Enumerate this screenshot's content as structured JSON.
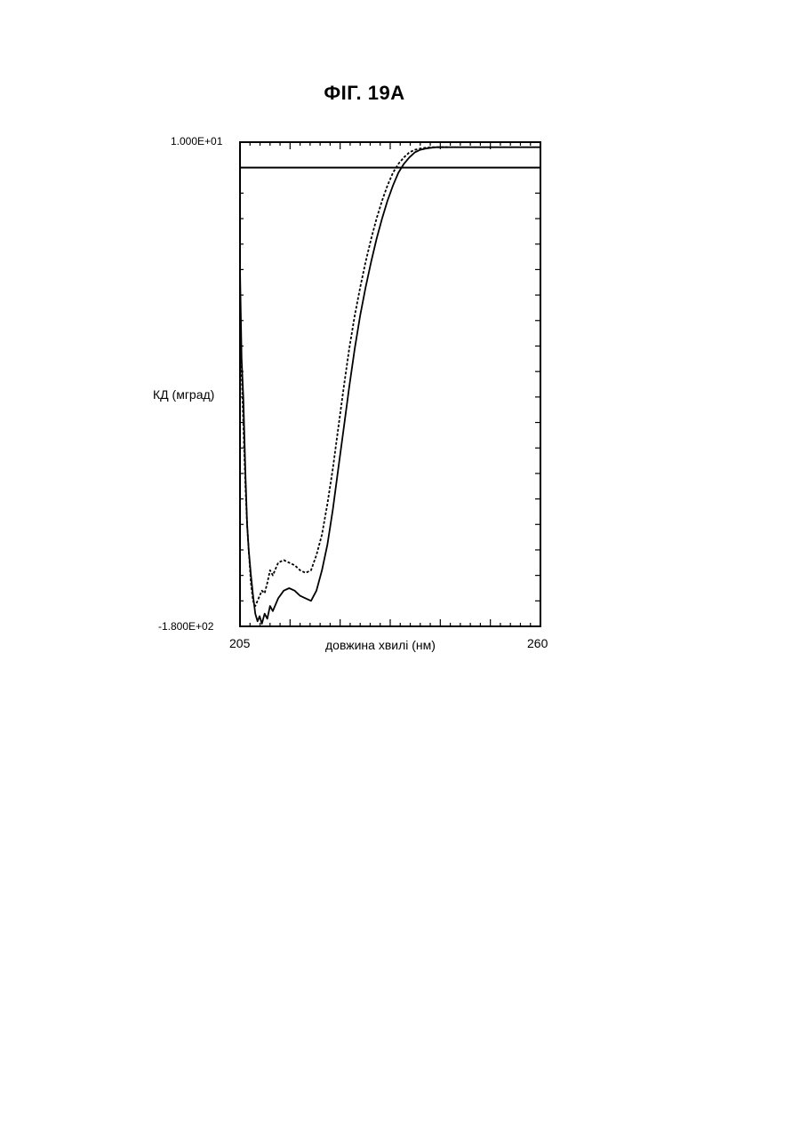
{
  "figure": {
    "title": "ФІГ. 19А"
  },
  "chart_data": {
    "type": "line",
    "title": "ФІГ. 19А",
    "xlabel": "довжина хвилі (нм)",
    "ylabel": "КД (мград)",
    "x_tick_labels": [
      "205",
      "260"
    ],
    "y_tick_labels": [
      "1.000E+01",
      "-1.800E+02"
    ],
    "xlim": [
      205,
      260
    ],
    "ylim": [
      -180,
      10
    ],
    "grid": false,
    "legend": "none",
    "reference_line": {
      "y": 0
    },
    "series": [
      {
        "style": "solid",
        "color": "#000000",
        "x": [
          205,
          205.3,
          205.6,
          206,
          206.3,
          206.6,
          207,
          207.4,
          207.8,
          208.2,
          208.6,
          209.0,
          209.5,
          210,
          210.5,
          211,
          212,
          213,
          214,
          215,
          216,
          217,
          218,
          219,
          220,
          221,
          222,
          223,
          224,
          225,
          226,
          227,
          228,
          229,
          230,
          231,
          232,
          233,
          234,
          235,
          236,
          237,
          238,
          239,
          240,
          241,
          242,
          243,
          244,
          245,
          246,
          247,
          248,
          249,
          250,
          251,
          252,
          254,
          256,
          258,
          260
        ],
        "y": [
          -40,
          -75,
          -90,
          -120,
          -140,
          -150,
          -160,
          -168,
          -175,
          -178,
          -176,
          -179,
          -175,
          -177,
          -172,
          -174,
          -169,
          -166,
          -165,
          -166,
          -168,
          -169,
          -170,
          -166,
          -158,
          -148,
          -134,
          -118,
          -102,
          -86,
          -71,
          -58,
          -47,
          -37,
          -28,
          -20,
          -13,
          -7,
          -2,
          1.5,
          4,
          6,
          7,
          7.5,
          7.8,
          8,
          8,
          8,
          8,
          8,
          8,
          8,
          8,
          8,
          8,
          8,
          8,
          8,
          8,
          8,
          8
        ]
      },
      {
        "style": "dashed",
        "color": "#000000",
        "x": [
          205,
          205.3,
          205.6,
          206,
          206.3,
          206.6,
          207,
          207.4,
          207.8,
          208.2,
          208.6,
          209.0,
          209.5,
          210,
          210.5,
          211,
          212,
          213,
          214,
          215,
          216,
          217,
          218,
          219,
          220,
          221,
          222,
          223,
          224,
          225,
          226,
          227,
          228,
          229,
          230,
          231,
          232,
          233,
          234,
          235,
          236,
          237,
          238,
          239,
          240,
          241,
          242,
          243
        ],
        "y": [
          -55,
          -80,
          -100,
          -125,
          -140,
          -150,
          -163,
          -170,
          -172,
          -170,
          -168,
          -166,
          -167,
          -163,
          -158,
          -160,
          -155,
          -154,
          -155,
          -156,
          -158,
          -159,
          -158,
          -152,
          -144,
          -132,
          -118,
          -102,
          -86,
          -71,
          -58,
          -47,
          -37,
          -28,
          -20,
          -13,
          -7,
          -2,
          1.5,
          4,
          6,
          7,
          7.5,
          7.8,
          8,
          8,
          8,
          8
        ]
      }
    ]
  }
}
